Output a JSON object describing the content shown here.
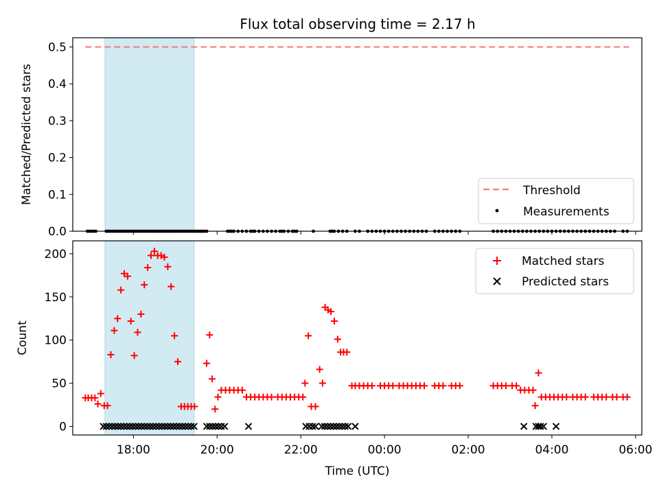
{
  "chart_data": {
    "title": "Flux total observing time = 2.17 h",
    "colors": {
      "threshold": "#f47c7c",
      "shade": "#add8e6",
      "matched": "#ff0000",
      "predicted": "#000000",
      "measurement": "#000000"
    },
    "x_axis": {
      "label": "Time (UTC)",
      "unit": "hours since 17:00",
      "range": [
        -0.45,
        13.15
      ],
      "ticks": [
        {
          "value": 1,
          "label": "18:00"
        },
        {
          "value": 3,
          "label": "20:00"
        },
        {
          "value": 5,
          "label": "22:00"
        },
        {
          "value": 7,
          "label": "00:00"
        },
        {
          "value": 9,
          "label": "02:00"
        },
        {
          "value": 11,
          "label": "04:00"
        },
        {
          "value": 13,
          "label": "06:00"
        }
      ]
    },
    "shaded_span": [
      0.32,
      2.45
    ],
    "top_panel": {
      "type": "line+scatter",
      "ylabel": "Matched/Predicted stars",
      "ylim": [
        0,
        0.525
      ],
      "yticks": [
        "0.0",
        "0.1",
        "0.2",
        "0.3",
        "0.4",
        "0.5"
      ],
      "threshold": {
        "value": 0.5,
        "x_range": [
          -0.15,
          12.85
        ]
      },
      "measurements_y": 0,
      "measurements_x": [
        -0.1,
        -0.05,
        0,
        0.05,
        0.1,
        0.35,
        0.4,
        0.45,
        0.5,
        0.55,
        0.6,
        0.65,
        0.7,
        0.75,
        0.8,
        0.85,
        0.9,
        0.95,
        1.0,
        1.05,
        1.1,
        1.15,
        1.2,
        1.25,
        1.3,
        1.35,
        1.4,
        1.45,
        1.5,
        1.55,
        1.6,
        1.65,
        1.7,
        1.75,
        1.8,
        1.85,
        1.9,
        1.95,
        2.0,
        2.05,
        2.1,
        2.15,
        2.2,
        2.25,
        2.3,
        2.35,
        2.4,
        2.45,
        2.5,
        2.55,
        2.6,
        2.65,
        2.7,
        2.75,
        3.25,
        3.3,
        3.35,
        3.4,
        3.5,
        3.6,
        3.7,
        3.8,
        3.85,
        3.9,
        4.0,
        4.1,
        4.2,
        4.3,
        4.4,
        4.5,
        4.55,
        4.6,
        4.7,
        4.8,
        4.85,
        4.9,
        5.3,
        5.7,
        5.75,
        5.8,
        5.9,
        6.0,
        6.1,
        6.3,
        6.4,
        6.6,
        6.7,
        6.8,
        6.9,
        7.0,
        7.1,
        7.2,
        7.3,
        7.4,
        7.5,
        7.6,
        7.7,
        7.8,
        7.9,
        8.0,
        8.2,
        8.3,
        8.4,
        8.5,
        8.6,
        8.7,
        8.8,
        9.6,
        9.7,
        9.8,
        9.9,
        10.0,
        10.1,
        10.2,
        10.3,
        10.4,
        10.5,
        10.6,
        10.7,
        10.8,
        10.9,
        11.0,
        11.1,
        11.2,
        11.3,
        11.4,
        11.5,
        11.6,
        11.7,
        11.8,
        11.9,
        12.0,
        12.1,
        12.2,
        12.3,
        12.4,
        12.5,
        12.7,
        12.8
      ],
      "legend": [
        {
          "label": "Threshold",
          "symbol": "dashed-line"
        },
        {
          "label": "Measurements",
          "symbol": "dot"
        }
      ]
    },
    "bottom_panel": {
      "type": "scatter",
      "ylabel": "Count",
      "ylim": [
        -10,
        215
      ],
      "yticks": [
        0,
        50,
        100,
        150,
        200
      ],
      "series": [
        {
          "name": "Matched stars",
          "marker": "plus",
          "points": [
            [
              -0.15,
              33
            ],
            [
              -0.08,
              33
            ],
            [
              0.0,
              33
            ],
            [
              0.08,
              33
            ],
            [
              0.15,
              26
            ],
            [
              0.22,
              38
            ],
            [
              0.3,
              24
            ],
            [
              0.38,
              24
            ],
            [
              0.46,
              83
            ],
            [
              0.54,
              111
            ],
            [
              0.62,
              125
            ],
            [
              0.7,
              158
            ],
            [
              0.78,
              177
            ],
            [
              0.86,
              174
            ],
            [
              0.94,
              122
            ],
            [
              1.02,
              82
            ],
            [
              1.1,
              109
            ],
            [
              1.18,
              130
            ],
            [
              1.26,
              164
            ],
            [
              1.34,
              184
            ],
            [
              1.42,
              198
            ],
            [
              1.5,
              203
            ],
            [
              1.58,
              198
            ],
            [
              1.66,
              198
            ],
            [
              1.74,
              196
            ],
            [
              1.82,
              185
            ],
            [
              1.9,
              162
            ],
            [
              1.98,
              105
            ],
            [
              2.06,
              75
            ],
            [
              2.14,
              23
            ],
            [
              2.22,
              23
            ],
            [
              2.3,
              23
            ],
            [
              2.38,
              23
            ],
            [
              2.46,
              23
            ],
            [
              2.75,
              73
            ],
            [
              2.82,
              106
            ],
            [
              2.88,
              55
            ],
            [
              2.95,
              20
            ],
            [
              3.02,
              34
            ],
            [
              3.1,
              42
            ],
            [
              3.2,
              42
            ],
            [
              3.3,
              42
            ],
            [
              3.4,
              42
            ],
            [
              3.5,
              42
            ],
            [
              3.6,
              42
            ],
            [
              3.7,
              34
            ],
            [
              3.8,
              34
            ],
            [
              3.9,
              34
            ],
            [
              4.0,
              34
            ],
            [
              4.1,
              34
            ],
            [
              4.2,
              34
            ],
            [
              4.3,
              34
            ],
            [
              4.45,
              34
            ],
            [
              4.55,
              34
            ],
            [
              4.65,
              34
            ],
            [
              4.75,
              34
            ],
            [
              4.85,
              34
            ],
            [
              4.95,
              34
            ],
            [
              5.05,
              34
            ],
            [
              5.1,
              50
            ],
            [
              5.18,
              105
            ],
            [
              5.25,
              23
            ],
            [
              5.35,
              23
            ],
            [
              5.45,
              66
            ],
            [
              5.52,
              50
            ],
            [
              5.58,
              138
            ],
            [
              5.65,
              135
            ],
            [
              5.72,
              133
            ],
            [
              5.8,
              122
            ],
            [
              5.88,
              101
            ],
            [
              5.95,
              86
            ],
            [
              6.02,
              86
            ],
            [
              6.1,
              86
            ],
            [
              6.22,
              47
            ],
            [
              6.3,
              47
            ],
            [
              6.4,
              47
            ],
            [
              6.5,
              47
            ],
            [
              6.6,
              47
            ],
            [
              6.7,
              47
            ],
            [
              6.9,
              47
            ],
            [
              7.0,
              47
            ],
            [
              7.1,
              47
            ],
            [
              7.2,
              47
            ],
            [
              7.35,
              47
            ],
            [
              7.45,
              47
            ],
            [
              7.55,
              47
            ],
            [
              7.65,
              47
            ],
            [
              7.75,
              47
            ],
            [
              7.85,
              47
            ],
            [
              7.95,
              47
            ],
            [
              8.2,
              47
            ],
            [
              8.3,
              47
            ],
            [
              8.4,
              47
            ],
            [
              8.6,
              47
            ],
            [
              8.7,
              47
            ],
            [
              8.8,
              47
            ],
            [
              9.6,
              47
            ],
            [
              9.7,
              47
            ],
            [
              9.8,
              47
            ],
            [
              9.9,
              47
            ],
            [
              10.05,
              47
            ],
            [
              10.15,
              47
            ],
            [
              10.25,
              42
            ],
            [
              10.35,
              42
            ],
            [
              10.45,
              42
            ],
            [
              10.55,
              42
            ],
            [
              10.6,
              24
            ],
            [
              10.68,
              62
            ],
            [
              10.75,
              34
            ],
            [
              10.85,
              34
            ],
            [
              10.95,
              34
            ],
            [
              11.05,
              34
            ],
            [
              11.15,
              34
            ],
            [
              11.25,
              34
            ],
            [
              11.35,
              34
            ],
            [
              11.5,
              34
            ],
            [
              11.6,
              34
            ],
            [
              11.7,
              34
            ],
            [
              11.8,
              34
            ],
            [
              12.0,
              34
            ],
            [
              12.1,
              34
            ],
            [
              12.2,
              34
            ],
            [
              12.3,
              34
            ],
            [
              12.45,
              34
            ],
            [
              12.55,
              34
            ],
            [
              12.7,
              34
            ],
            [
              12.8,
              34
            ]
          ]
        },
        {
          "name": "Predicted stars",
          "marker": "x",
          "y": 0,
          "x": [
            0.28,
            0.35,
            0.42,
            0.49,
            0.56,
            0.63,
            0.7,
            0.77,
            0.84,
            0.91,
            0.98,
            1.05,
            1.12,
            1.19,
            1.26,
            1.33,
            1.4,
            1.47,
            1.54,
            1.61,
            1.68,
            1.75,
            1.82,
            1.89,
            1.96,
            2.03,
            2.1,
            2.17,
            2.24,
            2.31,
            2.38,
            2.45,
            2.75,
            2.82,
            2.89,
            2.96,
            3.03,
            3.1,
            3.18,
            3.75,
            5.12,
            5.2,
            5.28,
            5.35,
            5.5,
            5.57,
            5.64,
            5.71,
            5.78,
            5.85,
            5.92,
            5.99,
            6.06,
            6.13,
            6.3,
            10.33,
            10.62,
            10.68,
            10.73,
            10.8,
            11.1
          ]
        }
      ],
      "legend": [
        {
          "label": "Matched stars",
          "symbol": "plus"
        },
        {
          "label": "Predicted stars",
          "symbol": "x"
        }
      ]
    }
  }
}
